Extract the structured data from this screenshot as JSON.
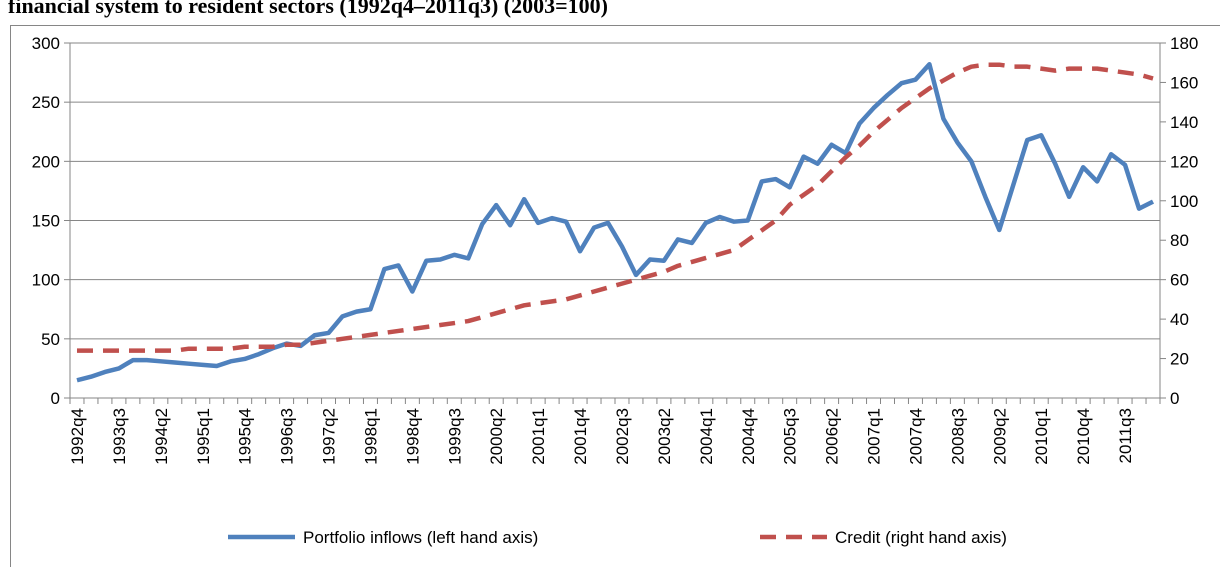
{
  "chart_data": {
    "type": "line",
    "title": "financial system to resident sectors (1992q4–2011q3) (2003=100)",
    "categories": [
      "1992q4",
      null,
      null,
      "1993q3",
      null,
      null,
      "1994q2",
      null,
      null,
      "1995q1",
      null,
      null,
      "1995q4",
      null,
      null,
      "1996q3",
      null,
      null,
      "1997q2",
      null,
      null,
      "1998q1",
      null,
      null,
      "1998q4",
      null,
      null,
      "1999q3",
      null,
      null,
      "2000q2",
      null,
      null,
      "2001q1",
      null,
      null,
      "2001q4",
      null,
      null,
      "2002q3",
      null,
      null,
      "2003q2",
      null,
      null,
      "2004q1",
      null,
      null,
      "2004q4",
      null,
      null,
      "2005q3",
      null,
      null,
      "2006q2",
      null,
      null,
      "2007q1",
      null,
      null,
      "2007q4",
      null,
      null,
      "2008q3",
      null,
      null,
      "2009q2",
      null,
      null,
      "2010q1",
      null,
      null,
      "2010q4",
      null,
      null,
      "2011q3",
      null,
      null
    ],
    "series": [
      {
        "name": "Portfolio inflows (left hand axis)",
        "color": "#4f81bd",
        "axis": "y",
        "dash": false,
        "values": [
          15,
          18,
          22,
          25,
          32,
          32,
          31,
          30,
          29,
          28,
          27,
          31,
          33,
          37,
          42,
          46,
          44,
          53,
          55,
          69,
          73,
          75,
          109,
          112,
          90,
          116,
          117,
          121,
          118,
          147,
          163,
          146,
          168,
          148,
          152,
          149,
          124,
          144,
          148,
          128,
          104,
          117,
          116,
          134,
          131,
          148,
          153,
          149,
          150,
          183,
          185,
          178,
          204,
          198,
          214,
          207,
          232,
          245,
          256,
          266,
          269,
          282,
          236,
          216,
          200,
          170,
          142,
          180,
          218,
          222,
          198,
          170,
          195,
          183,
          206,
          197,
          160,
          166
        ]
      },
      {
        "name": "Credit (right hand axis)",
        "color": "#c0504d",
        "axis": "y2",
        "dash": true,
        "values": [
          24,
          24,
          24,
          24,
          24,
          24,
          24,
          24,
          25,
          25,
          25,
          25,
          26,
          26,
          26,
          27,
          27,
          28,
          29,
          30,
          31,
          32,
          33,
          34,
          35,
          36,
          37,
          38,
          39,
          41,
          43,
          45,
          47,
          48,
          49,
          50,
          52,
          54,
          56,
          58,
          60,
          62,
          64,
          67,
          69,
          71,
          73,
          75,
          80,
          85,
          90,
          98,
          103,
          108,
          115,
          122,
          128,
          135,
          141,
          147,
          152,
          157,
          161,
          165,
          168,
          169,
          169,
          168,
          168,
          167,
          166,
          167,
          167,
          167,
          166,
          165,
          164,
          162
        ]
      }
    ],
    "ylim": [
      0,
      300
    ],
    "yticks": [
      0,
      50,
      100,
      150,
      200,
      250,
      300
    ],
    "y2lim": [
      0,
      180
    ],
    "y2ticks": [
      0,
      20,
      40,
      60,
      80,
      100,
      120,
      140,
      160,
      180
    ],
    "grid": true,
    "legend": "bottom"
  }
}
